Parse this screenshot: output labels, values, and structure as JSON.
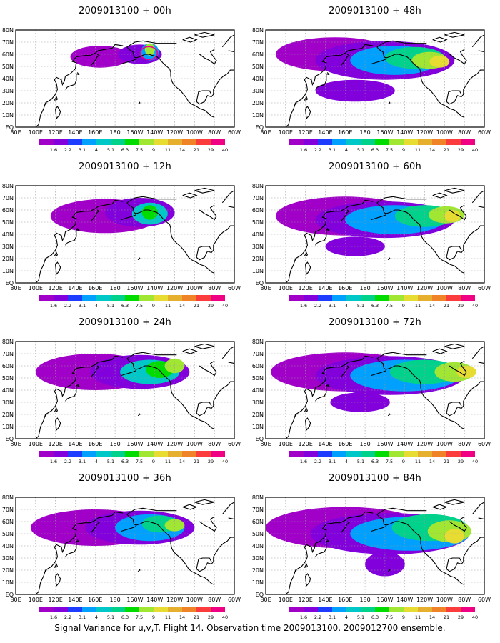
{
  "map_extent": {
    "lon_min": 80,
    "lon_max": 300,
    "lat_min": 0,
    "lat_max": 80
  },
  "lon_ticks": [
    "80E",
    "100E",
    "120E",
    "140E",
    "160E",
    "180",
    "160W",
    "140W",
    "120W",
    "100W",
    "80W",
    "60W"
  ],
  "lat_ticks": [
    "EQ",
    "10N",
    "20N",
    "30N",
    "40N",
    "50N",
    "60N",
    "70N",
    "80N"
  ],
  "legend": {
    "levels": [
      "1.6",
      "2.2",
      "3.1",
      "4",
      "5.1",
      "6.3",
      "7.5",
      "9",
      "11",
      "14",
      "21",
      "29",
      "40"
    ],
    "colors": [
      "#a000c8",
      "#8200dc",
      "#1e3cff",
      "#00a0ff",
      "#00c8c8",
      "#00d28c",
      "#00dc00",
      "#a0e632",
      "#e6dc32",
      "#e6af2d",
      "#f08228",
      "#fa3c3c",
      "#f00082"
    ]
  },
  "panels": [
    {
      "title": "2009013100 + 00h",
      "forecast_hour": 0
    },
    {
      "title": "2009013100 + 48h",
      "forecast_hour": 48
    },
    {
      "title": "2009013100 + 12h",
      "forecast_hour": 12
    },
    {
      "title": "2009013100 + 60h",
      "forecast_hour": 60
    },
    {
      "title": "2009013100 + 24h",
      "forecast_hour": 24
    },
    {
      "title": "2009013100 + 72h",
      "forecast_hour": 72
    },
    {
      "title": "2009013100 + 36h",
      "forecast_hour": 36
    },
    {
      "title": "2009013100 + 84h",
      "forecast_hour": 84
    }
  ],
  "caption": "Signal Variance for u,v,T. Flight 14. Observation time 2009013100. 2009012700 ensemble."
}
